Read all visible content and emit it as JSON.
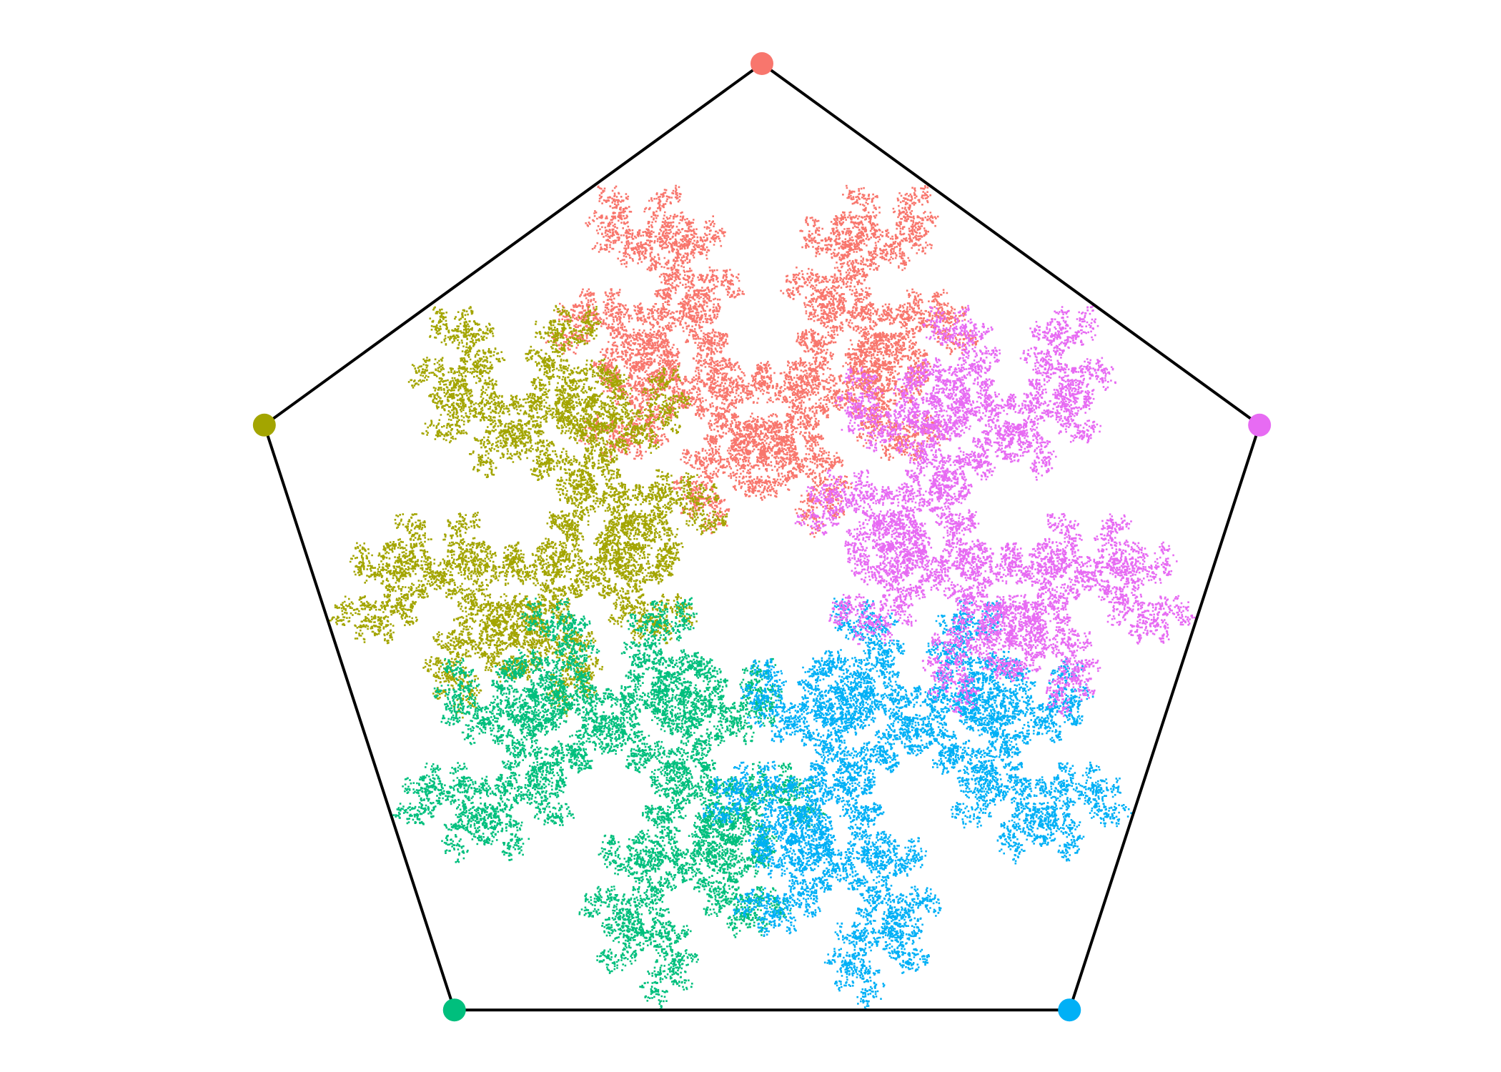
{
  "nodes": [
    {
      "color": "#F8766D"
    },
    {
      "color": "#A3A500"
    },
    {
      "color": "#00BF7D"
    },
    {
      "color": "#00B0F6"
    },
    {
      "color": "#E76BF3"
    }
  ]
}
